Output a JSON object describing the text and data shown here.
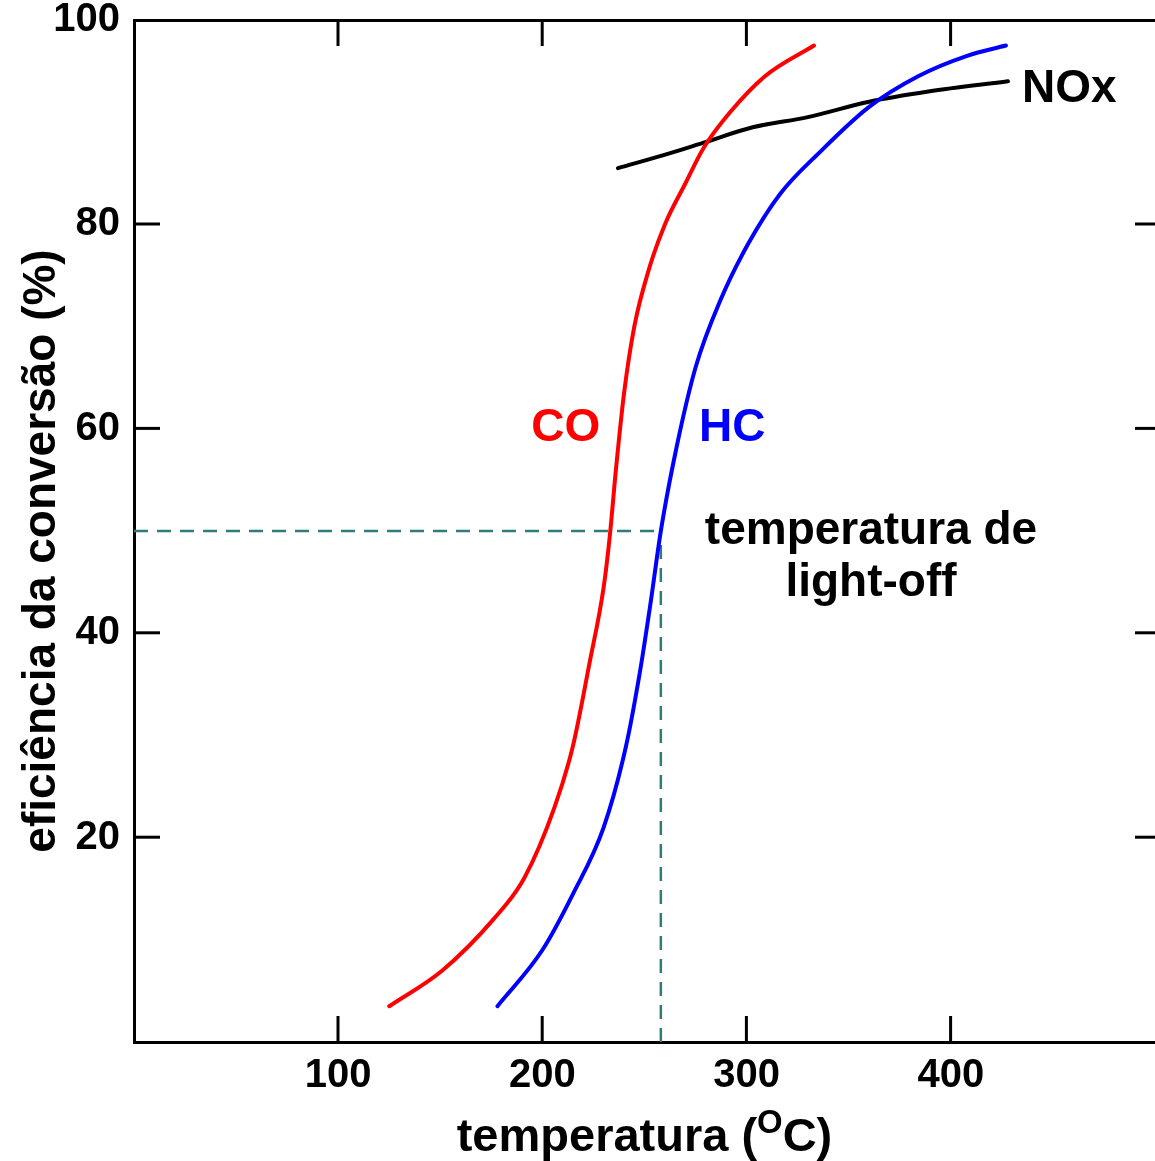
{
  "chart_data": {
    "type": "line",
    "xlabel": "temperatura ($^{O}$C)",
    "ylabel": "eficiência da conversão (%)",
    "xlim": [
      0,
      500
    ],
    "ylim": [
      0,
      100
    ],
    "xticks": [
      100,
      200,
      300,
      400
    ],
    "yticks": [
      20,
      40,
      60,
      80,
      100
    ],
    "grid": false,
    "legend": false,
    "marker": "none",
    "line_style": "solid",
    "series": [
      {
        "name": "CO",
        "color": "#ff0000",
        "x": [
          125,
          151,
          176,
          191,
          206,
          215,
          223,
          230,
          233,
          236,
          240,
          245,
          252,
          260,
          270,
          279,
          292,
          309,
          333
        ],
        "values": [
          3.5,
          7,
          12,
          16,
          23,
          29,
          37,
          44.5,
          49.5,
          56,
          63.5,
          70,
          75.5,
          80,
          84,
          87.5,
          91,
          94.5,
          97.5
        ]
      },
      {
        "name": "HC",
        "color": "#0000ff",
        "x": [
          178,
          200,
          215,
          230,
          241,
          248,
          253,
          258,
          265.5,
          275,
          287,
          300.5,
          316.5,
          335.5,
          360,
          384,
          408,
          427
        ],
        "values": [
          3.5,
          9,
          14.5,
          21,
          29,
          36.5,
          43,
          50,
          58,
          66,
          72.5,
          78,
          83,
          87,
          91.5,
          94.5,
          96.5,
          97.5
        ]
      },
      {
        "name": "NOx",
        "color": "#000000",
        "x": [
          237,
          263,
          279,
          303,
          330,
          360,
          389,
          428
        ],
        "values": [
          85.5,
          87,
          88,
          89.5,
          90.5,
          92,
          93,
          94
        ]
      }
    ],
    "ref_lines": [
      {
        "axis": "y",
        "value": 50,
        "color": "#2e7d7a",
        "line_style": "dashed"
      },
      {
        "axis": "x",
        "value": 258,
        "label": "temperatura de light-off",
        "color": "#2e7d7a",
        "line_style": "dashed"
      }
    ]
  }
}
